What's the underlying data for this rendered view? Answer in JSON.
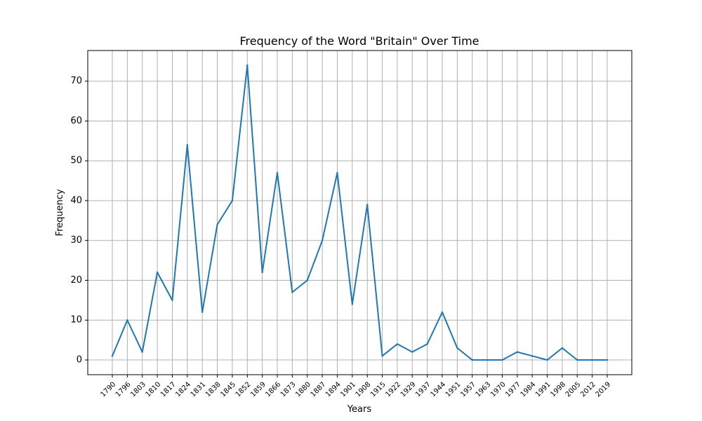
{
  "chart_data": {
    "type": "line",
    "title": "Frequency of the Word \"Britain\" Over Time",
    "xlabel": "Years",
    "ylabel": "Frequency",
    "x": [
      "1790",
      "1796",
      "1803",
      "1810",
      "1817",
      "1824",
      "1831",
      "1838",
      "1845",
      "1852",
      "1859",
      "1866",
      "1873",
      "1880",
      "1887",
      "1894",
      "1901",
      "1908",
      "1915",
      "1922",
      "1929",
      "1937",
      "1944",
      "1951",
      "1957",
      "1963",
      "1970",
      "1977",
      "1984",
      "1991",
      "1998",
      "2005",
      "2012",
      "2019"
    ],
    "series": [
      {
        "values": [
          1,
          10,
          2,
          22,
          15,
          54,
          12,
          34,
          40,
          74,
          22,
          47,
          17,
          20,
          30,
          47,
          14,
          39,
          1,
          4,
          2,
          4,
          12,
          3,
          0,
          0,
          0,
          2,
          1,
          0,
          3,
          0,
          0,
          0
        ],
        "color": "#1f77b4"
      }
    ],
    "yticks": [
      0,
      10,
      20,
      30,
      40,
      50,
      60,
      70
    ],
    "ylim": [
      -3.7,
      77.7
    ],
    "grid": true,
    "x_tick_rotation": 45
  }
}
